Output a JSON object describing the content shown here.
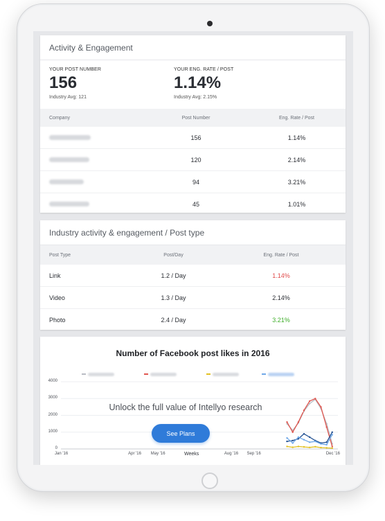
{
  "activity_card": {
    "title": "Activity & Engagement",
    "kpis": [
      {
        "label": "YOUR POST NUMBER",
        "value": "156",
        "avg": "Industry Avg: 121"
      },
      {
        "label": "YOUR ENG. RATE / POST",
        "value": "1.14%",
        "avg": "Industry Avg: 2.15%"
      }
    ],
    "table": {
      "headers": [
        "Company",
        "Post Number",
        "Eng. Rate / Post"
      ],
      "rows": [
        {
          "post_number": "156",
          "eng_rate": "1.14%"
        },
        {
          "post_number": "120",
          "eng_rate": "2.14%"
        },
        {
          "post_number": "94",
          "eng_rate": "3.21%"
        },
        {
          "post_number": "45",
          "eng_rate": "1.01%"
        }
      ]
    }
  },
  "post_type_card": {
    "title": "Industry activity & engagement / Post type",
    "headers": [
      "Post Type",
      "Post/Day",
      "Eng. Rate / Post"
    ],
    "rows": [
      {
        "type": "Link",
        "per_day": "1.2 / Day",
        "eng_rate": "1.14%",
        "status": "red"
      },
      {
        "type": "Video",
        "per_day": "1.3 / Day",
        "eng_rate": "2.14%",
        "status": "neutral"
      },
      {
        "type": "Photo",
        "per_day": "2.4 / Day",
        "eng_rate": "3.21%",
        "status": "green"
      }
    ]
  },
  "chart_card": {
    "unlock_text": "Unlock the full value of Intellyo research",
    "cta_label": "See Plans"
  },
  "colors": {
    "accent": "#2f7bd9",
    "negative": "#e04b4b",
    "positive": "#3fae2a"
  },
  "chart_data": {
    "type": "line",
    "title": "Number of Facebook post likes in 2016",
    "xlabel": "Weeks",
    "ylabel": "",
    "ylim": [
      0,
      4000
    ],
    "yticks": [
      "0",
      "1000",
      "2000",
      "3000",
      "4000"
    ],
    "xticks": [
      {
        "label": "Jan '16",
        "week": 1
      },
      {
        "label": "Apr '16",
        "week": 14
      },
      {
        "label": "May '16",
        "week": 18
      },
      {
        "label": "Aug '16",
        "week": 31
      },
      {
        "label": "Sep '16",
        "week": 35
      },
      {
        "label": "Dec '16",
        "week": 49
      }
    ],
    "legend_position": "top",
    "grid": true,
    "series": [
      {
        "color": "#b8bcc3",
        "points": [
          [
            41,
            1500
          ],
          [
            42,
            1100
          ],
          [
            43,
            1550
          ],
          [
            44,
            2250
          ],
          [
            45,
            2700
          ],
          [
            46,
            2950
          ],
          [
            47,
            2400
          ],
          [
            48,
            1500
          ],
          [
            49,
            300
          ]
        ]
      },
      {
        "color": "#e0564f",
        "points": [
          [
            41,
            1600
          ],
          [
            42,
            1000
          ],
          [
            43,
            1600
          ],
          [
            44,
            2300
          ],
          [
            45,
            2850
          ],
          [
            46,
            3000
          ],
          [
            47,
            2500
          ],
          [
            48,
            1300
          ],
          [
            49,
            150
          ]
        ]
      },
      {
        "color": "#1f4e91",
        "points": [
          [
            41,
            450
          ],
          [
            42,
            500
          ],
          [
            43,
            600
          ],
          [
            44,
            900
          ],
          [
            45,
            700
          ],
          [
            46,
            500
          ],
          [
            47,
            350
          ],
          [
            48,
            400
          ],
          [
            49,
            1000
          ]
        ]
      },
      {
        "color": "#6fa8e8",
        "points": [
          [
            41,
            650
          ],
          [
            42,
            350
          ],
          [
            43,
            700
          ],
          [
            44,
            550
          ],
          [
            45,
            400
          ],
          [
            46,
            450
          ],
          [
            47,
            300
          ],
          [
            48,
            250
          ],
          [
            49,
            850
          ]
        ]
      },
      {
        "color": "#e2c021",
        "points": [
          [
            41,
            150
          ],
          [
            42,
            100
          ],
          [
            43,
            150
          ],
          [
            44,
            120
          ],
          [
            45,
            90
          ],
          [
            46,
            130
          ],
          [
            47,
            80
          ],
          [
            48,
            60
          ],
          [
            49,
            50
          ]
        ]
      }
    ]
  }
}
